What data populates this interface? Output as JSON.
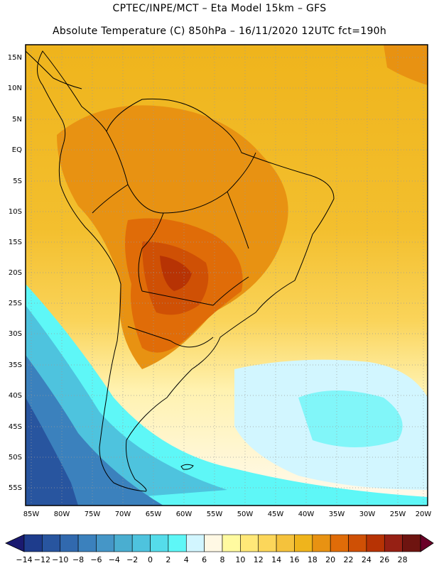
{
  "header": {
    "line1": "CPTEC/INPE/MCT –  Eta Model 15km – GFS",
    "line2": "Absolute Temperature (C) 850hPa – 16/11/2020 12UTC fct=190h"
  },
  "map": {
    "lat_labels": [
      "15N",
      "10N",
      "5N",
      "EQ",
      "5S",
      "10S",
      "15S",
      "20S",
      "25S",
      "30S",
      "35S",
      "40S",
      "45S",
      "50S",
      "55S"
    ],
    "lon_labels": [
      "85W",
      "80W",
      "75W",
      "70W",
      "65W",
      "60W",
      "55W",
      "50W",
      "45W",
      "40W",
      "35W",
      "30W",
      "25W",
      "20W"
    ],
    "land_color": "#e8a010",
    "ocean_color": "#f0b41c"
  },
  "colorbar": {
    "labels": [
      "-14",
      "-12",
      "-10",
      "-8",
      "-6",
      "-4",
      "-2",
      "0",
      "2",
      "4",
      "6",
      "8",
      "10",
      "12",
      "14",
      "16",
      "18",
      "20",
      "22",
      "24",
      "26",
      "28"
    ],
    "colors": [
      "#1e3c8c",
      "#28559f",
      "#3169ae",
      "#3b81bd",
      "#4596c7",
      "#4aaed0",
      "#4ec3de",
      "#55dcea",
      "#5ef7f7",
      "#d2f6ff",
      "#fff8e4",
      "#fffaa0",
      "#ffe878",
      "#fcd65a",
      "#f5c23c",
      "#efb41c",
      "#e89212",
      "#e06c08",
      "#cf5005",
      "#b73304",
      "#962014",
      "#6e1410"
    ],
    "under_color": "#1a1a70",
    "over_color": "#6a0028"
  }
}
